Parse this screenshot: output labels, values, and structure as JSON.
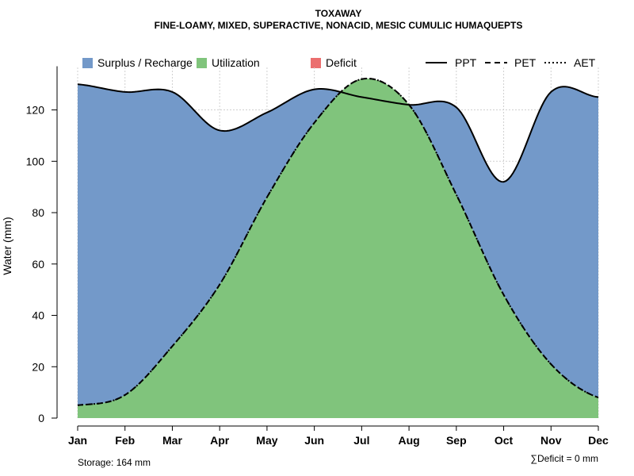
{
  "chart_data": {
    "type": "area",
    "title": "TOXAWAY",
    "subtitle": "FINE-LOAMY, MIXED, SUPERACTIVE, NONACID, MESIC CUMULIC HUMAQUEPTS",
    "xlabel": "",
    "ylabel": "Water (mm)",
    "categories": [
      "Jan",
      "Feb",
      "Mar",
      "Apr",
      "May",
      "Jun",
      "Jul",
      "Aug",
      "Sep",
      "Oct",
      "Nov",
      "Dec"
    ],
    "ylim": [
      0,
      135
    ],
    "yticks": [
      0,
      20,
      40,
      60,
      80,
      100,
      120
    ],
    "grid": true,
    "legend_position": "top",
    "series": [
      {
        "name": "PPT",
        "values": [
          130,
          127,
          127,
          112,
          119,
          128,
          125,
          122,
          121,
          92,
          127,
          125
        ]
      },
      {
        "name": "PET",
        "values": [
          5,
          9,
          28,
          52,
          86,
          115,
          132,
          122,
          87,
          48,
          21,
          8
        ]
      },
      {
        "name": "AET",
        "values": [
          5,
          9,
          28,
          52,
          86,
          115,
          132,
          122,
          87,
          48,
          21,
          8
        ]
      }
    ],
    "areas": [
      {
        "name": "Surplus / Recharge",
        "color": "#7399c9"
      },
      {
        "name": "Utilization",
        "color": "#80c47c"
      },
      {
        "name": "Deficit",
        "color": "#eb6e6e"
      }
    ],
    "annotations": {
      "storage": "Storage: 164 mm",
      "deficit": "∑Deficit = 0 mm"
    }
  }
}
